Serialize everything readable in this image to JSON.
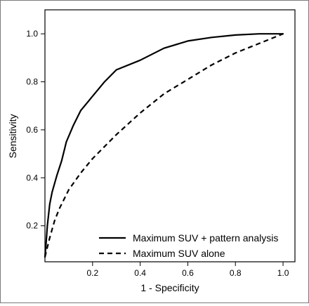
{
  "chart_data": {
    "type": "line",
    "title": "",
    "xlabel": "1 - Specificity",
    "ylabel": "Sensitivity",
    "xlim": [
      0,
      1.05
    ],
    "ylim": [
      0.05,
      1.1
    ],
    "xticks": [
      0.2,
      0.4,
      0.6,
      0.8,
      1.0
    ],
    "xtick_labels": [
      "0.2",
      "0.4",
      "0.6",
      "0.8",
      "1.0"
    ],
    "yticks": [
      0.2,
      0.4,
      0.6,
      0.8,
      1.0
    ],
    "ytick_labels": [
      "0.2",
      "0.4",
      "0.6",
      "0.8",
      "1.0"
    ],
    "grid": false,
    "legend_position": "bottom-right",
    "series": [
      {
        "name": "Maximum SUV + pattern analysis",
        "style": "solid",
        "color": "#000000",
        "x": [
          0.0,
          0.005,
          0.01,
          0.02,
          0.03,
          0.05,
          0.07,
          0.09,
          0.12,
          0.15,
          0.2,
          0.25,
          0.3,
          0.4,
          0.5,
          0.6,
          0.7,
          0.8,
          0.9,
          1.0
        ],
        "y": [
          0.07,
          0.13,
          0.2,
          0.29,
          0.34,
          0.41,
          0.47,
          0.55,
          0.62,
          0.68,
          0.74,
          0.8,
          0.85,
          0.89,
          0.94,
          0.97,
          0.985,
          0.995,
          1.0,
          1.0
        ]
      },
      {
        "name": "Maximum SUV alone",
        "style": "dashed",
        "color": "#000000",
        "x": [
          0.0,
          0.01,
          0.02,
          0.04,
          0.06,
          0.08,
          0.1,
          0.15,
          0.2,
          0.3,
          0.4,
          0.5,
          0.6,
          0.7,
          0.8,
          0.9,
          1.0
        ],
        "y": [
          0.07,
          0.11,
          0.15,
          0.22,
          0.27,
          0.31,
          0.35,
          0.42,
          0.48,
          0.58,
          0.67,
          0.75,
          0.81,
          0.87,
          0.92,
          0.96,
          1.0
        ]
      }
    ]
  }
}
